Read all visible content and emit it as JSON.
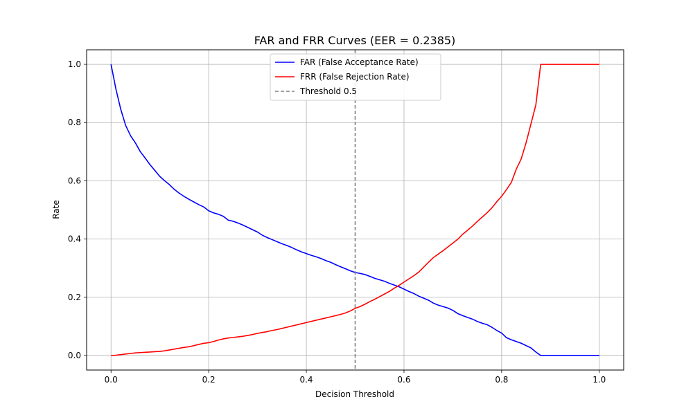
{
  "chart_data": {
    "type": "line",
    "title": "FAR and FRR Curves (EER = 0.2385)",
    "xlabel": "Decision Threshold",
    "ylabel": "Rate",
    "xlim": [
      -0.05,
      1.05
    ],
    "ylim": [
      -0.05,
      1.05
    ],
    "x_ticks": [
      "0.0",
      "0.2",
      "0.4",
      "0.6",
      "0.8",
      "1.0"
    ],
    "y_ticks": [
      "0.0",
      "0.2",
      "0.4",
      "0.6",
      "0.8",
      "1.0"
    ],
    "grid": true,
    "legend_position": "top-center",
    "x": [
      0.0,
      0.01,
      0.02,
      0.03,
      0.04,
      0.05,
      0.06,
      0.07,
      0.08,
      0.09,
      0.1,
      0.11,
      0.12,
      0.13,
      0.14,
      0.15,
      0.16,
      0.17,
      0.18,
      0.19,
      0.2,
      0.21,
      0.22,
      0.23,
      0.24,
      0.25,
      0.26,
      0.27,
      0.28,
      0.29,
      0.3,
      0.31,
      0.32,
      0.33,
      0.34,
      0.35,
      0.36,
      0.37,
      0.38,
      0.39,
      0.4,
      0.41,
      0.42,
      0.43,
      0.44,
      0.45,
      0.46,
      0.47,
      0.48,
      0.49,
      0.5,
      0.51,
      0.52,
      0.53,
      0.54,
      0.55,
      0.56,
      0.57,
      0.58,
      0.59,
      0.6,
      0.61,
      0.62,
      0.63,
      0.64,
      0.65,
      0.66,
      0.67,
      0.68,
      0.69,
      0.7,
      0.71,
      0.72,
      0.73,
      0.74,
      0.75,
      0.76,
      0.77,
      0.78,
      0.79,
      0.8,
      0.81,
      0.82,
      0.83,
      0.84,
      0.85,
      0.86,
      0.87,
      0.88,
      0.89,
      0.9,
      0.91,
      0.92,
      0.93,
      0.94,
      0.95,
      0.96,
      0.97,
      0.98,
      0.99,
      1.0
    ],
    "series": [
      {
        "name": "FAR (False Acceptance Rate)",
        "color": "#0000ff",
        "values": [
          1.0,
          0.915,
          0.845,
          0.79,
          0.755,
          0.73,
          0.7,
          0.678,
          0.655,
          0.635,
          0.615,
          0.6,
          0.586,
          0.57,
          0.557,
          0.546,
          0.536,
          0.527,
          0.518,
          0.51,
          0.497,
          0.49,
          0.485,
          0.478,
          0.465,
          0.461,
          0.455,
          0.448,
          0.44,
          0.432,
          0.424,
          0.413,
          0.405,
          0.398,
          0.391,
          0.384,
          0.378,
          0.371,
          0.363,
          0.356,
          0.35,
          0.344,
          0.339,
          0.333,
          0.326,
          0.32,
          0.312,
          0.305,
          0.298,
          0.291,
          0.285,
          0.282,
          0.278,
          0.272,
          0.265,
          0.26,
          0.255,
          0.248,
          0.242,
          0.236,
          0.228,
          0.22,
          0.213,
          0.204,
          0.197,
          0.19,
          0.18,
          0.173,
          0.168,
          0.163,
          0.155,
          0.144,
          0.137,
          0.131,
          0.125,
          0.117,
          0.111,
          0.106,
          0.097,
          0.086,
          0.077,
          0.061,
          0.054,
          0.048,
          0.042,
          0.034,
          0.026,
          0.012,
          0.0,
          0.0,
          0.0,
          0.0,
          0.0,
          0.0,
          0.0,
          0.0,
          0.0,
          0.0,
          0.0,
          0.0,
          0.0
        ]
      },
      {
        "name": "FRR (False Rejection Rate)",
        "color": "#ff0000",
        "values": [
          0.0,
          0.001,
          0.003,
          0.005,
          0.007,
          0.009,
          0.01,
          0.011,
          0.012,
          0.013,
          0.014,
          0.016,
          0.019,
          0.022,
          0.025,
          0.028,
          0.03,
          0.034,
          0.038,
          0.042,
          0.044,
          0.048,
          0.053,
          0.057,
          0.06,
          0.062,
          0.064,
          0.066,
          0.069,
          0.072,
          0.076,
          0.079,
          0.082,
          0.086,
          0.089,
          0.093,
          0.097,
          0.101,
          0.105,
          0.109,
          0.113,
          0.117,
          0.121,
          0.125,
          0.129,
          0.133,
          0.137,
          0.141,
          0.146,
          0.153,
          0.162,
          0.168,
          0.176,
          0.185,
          0.193,
          0.202,
          0.211,
          0.22,
          0.231,
          0.241,
          0.252,
          0.263,
          0.274,
          0.286,
          0.303,
          0.32,
          0.336,
          0.348,
          0.36,
          0.373,
          0.386,
          0.399,
          0.416,
          0.43,
          0.444,
          0.46,
          0.475,
          0.49,
          0.507,
          0.528,
          0.547,
          0.57,
          0.595,
          0.64,
          0.675,
          0.73,
          0.795,
          0.86,
          1.0,
          1.0,
          1.0,
          1.0,
          1.0,
          1.0,
          1.0,
          1.0,
          1.0,
          1.0,
          1.0,
          1.0,
          1.0
        ]
      }
    ],
    "threshold": {
      "name": "Threshold 0.5",
      "value": 0.5,
      "color": "#808080"
    }
  }
}
